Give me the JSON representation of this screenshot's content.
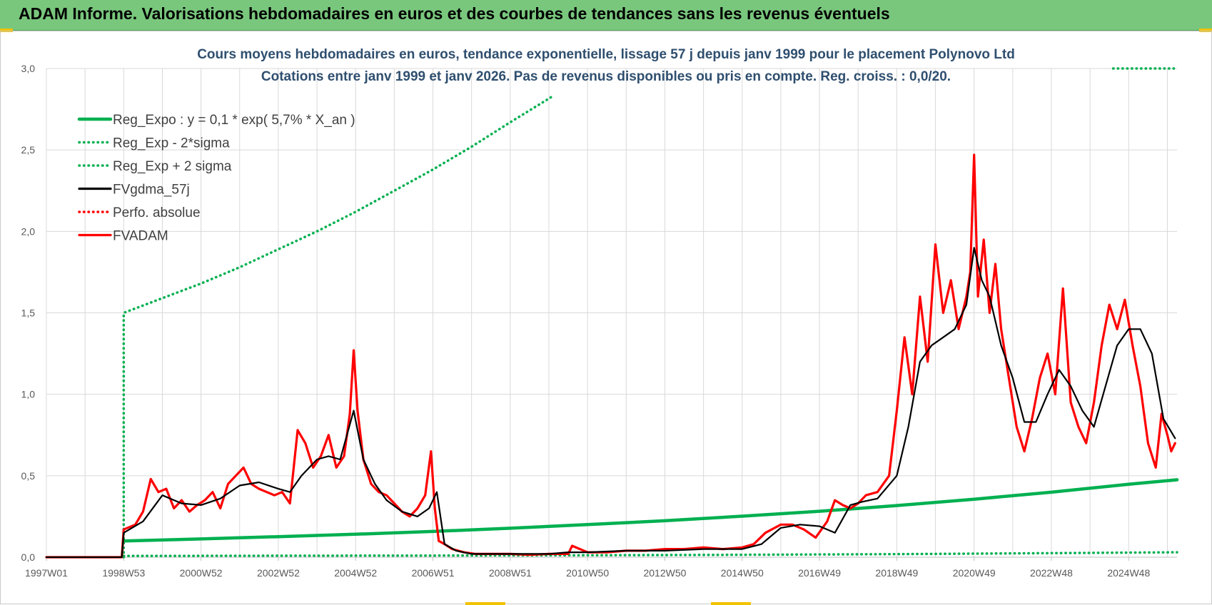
{
  "header": {
    "title": "ADAM Informe. Valorisations hebdomadaires en euros et des courbes de tendances sans les revenus éventuels"
  },
  "colors": {
    "banner": "#79c77d",
    "green": "#00b050",
    "red": "#ff0000",
    "black": "#000000",
    "grid": "#d9d9d9",
    "accent": "#f2c200"
  },
  "chart_data": {
    "type": "line",
    "title": "Cours moyens hebdomadaires en euros, tendance exponentielle, lissage 57 j depuis janv 1999 pour le placement Polynovo Ltd",
    "subtitle": "Cotations entre janv 1999 et janv 2026. Pas de revenus disponibles ou pris  en compte. Reg. croiss. : 0,0/20.",
    "xlabel": "",
    "ylabel": "",
    "xlim": [
      1997.0,
      2026.25
    ],
    "ylim": [
      0,
      3
    ],
    "y_ticks": [
      "0,0",
      "0,5",
      "1,0",
      "1,5",
      "2,0",
      "2,5",
      "3,0"
    ],
    "y_tick_values": [
      0,
      0.5,
      1.0,
      1.5,
      2.0,
      2.5,
      3.0
    ],
    "x_ticks": [
      "1997W01",
      "1998W53",
      "2000W52",
      "2002W52",
      "2004W52",
      "2006W51",
      "2008W51",
      "2010W50",
      "2012W50",
      "2014W50",
      "2016W49",
      "2018W49",
      "2020W49",
      "2022W48",
      "2024W48"
    ],
    "x_tick_values": [
      1997.0,
      1999.0,
      2001.0,
      2003.0,
      2005.0,
      2007.0,
      2009.0,
      2011.0,
      2013.0,
      2015.0,
      2017.0,
      2019.0,
      2021.0,
      2023.0,
      2025.0
    ],
    "legend_position": "top-left",
    "series": [
      {
        "name": "Reg_Expo : y = 0,1 * exp( 5,7% *  X_an )",
        "style": "solid-thick",
        "color": "#00b050",
        "x": [
          1999.0,
          2001.0,
          2003.0,
          2005.0,
          2007.0,
          2009.0,
          2011.0,
          2013.0,
          2015.0,
          2017.0,
          2019.0,
          2021.0,
          2023.0,
          2025.0,
          2026.25
        ],
        "y": [
          0.1,
          0.112,
          0.126,
          0.141,
          0.158,
          0.178,
          0.2,
          0.224,
          0.252,
          0.282,
          0.317,
          0.356,
          0.399,
          0.448,
          0.475
        ]
      },
      {
        "name": "Reg_Exp - 2*sigma",
        "style": "dotted",
        "color": "#00b050",
        "x": [
          1999.0,
          2003.0,
          2007.0,
          2011.0,
          2015.0,
          2019.0,
          2023.0,
          2026.25
        ],
        "y": [
          0.008,
          0.009,
          0.01,
          0.012,
          0.015,
          0.019,
          0.025,
          0.03
        ]
      },
      {
        "name": "Reg_Exp + 2 sigma",
        "style": "dotted",
        "color": "#00b050",
        "x": [
          1999.0,
          1999.0,
          2000.0,
          2001.0,
          2002.0,
          2003.0,
          2004.0,
          2005.0,
          2006.0,
          2007.0,
          2008.0,
          2009.0,
          2010.1
        ],
        "y": [
          0.0,
          1.5,
          1.59,
          1.68,
          1.78,
          1.89,
          2.0,
          2.12,
          2.25,
          2.38,
          2.52,
          2.67,
          2.83
        ],
        "x2": [
          2024.6,
          2026.25
        ],
        "y2": [
          3.0,
          3.0
        ]
      },
      {
        "name": "FVgdma_57j",
        "style": "solid",
        "color": "#000000",
        "x": [
          1997.0,
          1998.95,
          1999.0,
          1999.5,
          2000.0,
          2000.5,
          2001.0,
          2001.5,
          2002.0,
          2002.5,
          2003.0,
          2003.3,
          2003.6,
          2004.0,
          2004.3,
          2004.6,
          2004.95,
          2005.2,
          2005.5,
          2005.8,
          2006.2,
          2006.6,
          2006.9,
          2007.1,
          2007.3,
          2007.6,
          2008.0,
          2008.5,
          2009.0,
          2010.0,
          2010.5,
          2011.0,
          2012.0,
          2013.0,
          2014.0,
          2015.0,
          2015.5,
          2016.0,
          2016.5,
          2017.0,
          2017.4,
          2017.8,
          2018.1,
          2018.5,
          2019.0,
          2019.3,
          2019.6,
          2019.9,
          2020.2,
          2020.5,
          2020.8,
          2021.0,
          2021.2,
          2021.4,
          2021.7,
          2022.0,
          2022.3,
          2022.6,
          2022.9,
          2023.2,
          2023.5,
          2023.8,
          2024.1,
          2024.4,
          2024.7,
          2025.0,
          2025.3,
          2025.6,
          2025.9,
          2026.2
        ],
        "y": [
          0.0,
          0.0,
          0.15,
          0.22,
          0.38,
          0.33,
          0.32,
          0.36,
          0.44,
          0.46,
          0.42,
          0.4,
          0.5,
          0.6,
          0.62,
          0.6,
          0.9,
          0.6,
          0.45,
          0.35,
          0.28,
          0.25,
          0.3,
          0.4,
          0.08,
          0.04,
          0.02,
          0.02,
          0.02,
          0.02,
          0.03,
          0.03,
          0.04,
          0.04,
          0.05,
          0.05,
          0.08,
          0.18,
          0.2,
          0.19,
          0.15,
          0.32,
          0.34,
          0.36,
          0.5,
          0.8,
          1.2,
          1.3,
          1.35,
          1.4,
          1.55,
          1.9,
          1.7,
          1.6,
          1.3,
          1.1,
          0.83,
          0.83,
          1.0,
          1.15,
          1.05,
          0.9,
          0.8,
          1.05,
          1.3,
          1.4,
          1.4,
          1.25,
          0.85,
          0.73
        ]
      },
      {
        "name": "Perfo. absolue",
        "style": "dotted",
        "color": "#ff0000",
        "x": [],
        "y": []
      },
      {
        "name": "FVADAM",
        "style": "solid-thick",
        "color": "#ff0000",
        "x": [
          1997.0,
          1998.95,
          1999.0,
          1999.3,
          1999.5,
          1999.7,
          1999.9,
          2000.1,
          2000.3,
          2000.5,
          2000.7,
          2000.9,
          2001.1,
          2001.3,
          2001.5,
          2001.7,
          2001.9,
          2002.1,
          2002.3,
          2002.5,
          2002.7,
          2002.9,
          2003.1,
          2003.3,
          2003.5,
          2003.7,
          2003.9,
          2004.1,
          2004.3,
          2004.5,
          2004.7,
          2004.85,
          2004.95,
          2005.05,
          2005.2,
          2005.4,
          2005.6,
          2005.8,
          2006.0,
          2006.2,
          2006.4,
          2006.6,
          2006.8,
          2006.95,
          2007.05,
          2007.15,
          2007.3,
          2007.5,
          2007.8,
          2008.1,
          2008.5,
          2009.0,
          2009.5,
          2010.0,
          2010.5,
          2010.6,
          2011.0,
          2011.5,
          2012.0,
          2012.5,
          2013.0,
          2013.5,
          2014.0,
          2014.5,
          2015.0,
          2015.3,
          2015.6,
          2016.0,
          2016.3,
          2016.6,
          2016.9,
          2017.2,
          2017.4,
          2017.6,
          2017.8,
          2018.0,
          2018.2,
          2018.5,
          2018.8,
          2019.0,
          2019.2,
          2019.4,
          2019.6,
          2019.8,
          2020.0,
          2020.2,
          2020.4,
          2020.6,
          2020.8,
          2020.9,
          2021.0,
          2021.1,
          2021.25,
          2021.4,
          2021.55,
          2021.7,
          2021.9,
          2022.1,
          2022.3,
          2022.5,
          2022.7,
          2022.9,
          2023.1,
          2023.3,
          2023.5,
          2023.7,
          2023.9,
          2024.1,
          2024.3,
          2024.5,
          2024.7,
          2024.9,
          2025.1,
          2025.3,
          2025.5,
          2025.7,
          2025.85,
          2026.0,
          2026.1,
          2026.2
        ],
        "y": [
          0.0,
          0.0,
          0.17,
          0.2,
          0.28,
          0.48,
          0.4,
          0.42,
          0.3,
          0.35,
          0.28,
          0.32,
          0.35,
          0.4,
          0.3,
          0.45,
          0.5,
          0.55,
          0.45,
          0.42,
          0.4,
          0.38,
          0.4,
          0.33,
          0.78,
          0.7,
          0.55,
          0.62,
          0.75,
          0.55,
          0.62,
          0.88,
          1.27,
          0.9,
          0.6,
          0.45,
          0.4,
          0.38,
          0.33,
          0.28,
          0.25,
          0.3,
          0.38,
          0.65,
          0.3,
          0.1,
          0.08,
          0.05,
          0.03,
          0.02,
          0.02,
          0.02,
          0.015,
          0.02,
          0.02,
          0.07,
          0.03,
          0.03,
          0.04,
          0.04,
          0.05,
          0.05,
          0.06,
          0.05,
          0.06,
          0.08,
          0.15,
          0.2,
          0.2,
          0.17,
          0.12,
          0.22,
          0.35,
          0.32,
          0.3,
          0.33,
          0.38,
          0.4,
          0.5,
          0.9,
          1.35,
          1.0,
          1.6,
          1.2,
          1.92,
          1.5,
          1.7,
          1.4,
          1.6,
          1.75,
          2.47,
          1.6,
          1.95,
          1.5,
          1.8,
          1.4,
          1.1,
          0.8,
          0.65,
          0.85,
          1.1,
          1.25,
          1.0,
          1.65,
          0.95,
          0.8,
          0.7,
          0.95,
          1.3,
          1.55,
          1.4,
          1.58,
          1.3,
          1.05,
          0.7,
          0.55,
          0.88,
          0.75,
          0.65,
          0.7
        ]
      }
    ]
  }
}
